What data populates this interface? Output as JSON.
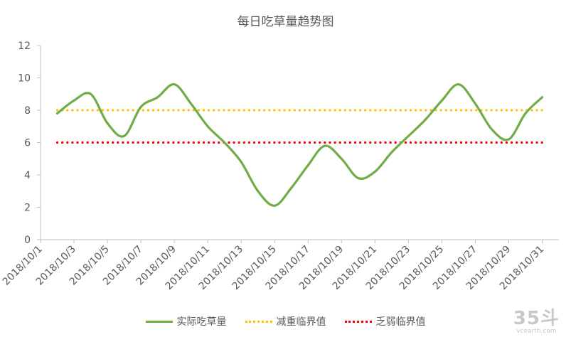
{
  "chart_data": {
    "type": "line",
    "title": "每日吃草量趋势图",
    "xlabel": "",
    "ylabel": "",
    "ylim": [
      0,
      12
    ],
    "yticks": [
      0,
      2,
      4,
      6,
      8,
      10,
      12
    ],
    "x_tick_labels": [
      "2018/10/1",
      "2018/10/3",
      "2018/10/5",
      "2018/10/7",
      "2018/10/9",
      "2018/10/11",
      "2018/10/13",
      "2018/10/15",
      "2018/10/17",
      "2018/10/19",
      "2018/10/21",
      "2018/10/23",
      "2018/10/25",
      "2018/10/27",
      "2018/10/29",
      "2018/10/31"
    ],
    "grid": false,
    "legend_position": "bottom",
    "series": [
      {
        "name": "实际吃草量",
        "style": "smooth-line",
        "color": "#70AD47",
        "x": [
          "2018/10/2",
          "2018/10/3",
          "2018/10/4",
          "2018/10/5",
          "2018/10/6",
          "2018/10/7",
          "2018/10/8",
          "2018/10/9",
          "2018/10/10",
          "2018/10/11",
          "2018/10/12",
          "2018/10/13",
          "2018/10/14",
          "2018/10/15",
          "2018/10/16",
          "2018/10/17",
          "2018/10/18",
          "2018/10/19",
          "2018/10/20",
          "2018/10/21",
          "2018/10/22",
          "2018/10/23",
          "2018/10/24",
          "2018/10/25",
          "2018/10/26",
          "2018/10/27",
          "2018/10/28",
          "2018/10/29",
          "2018/10/30",
          "2018/10/31"
        ],
        "values": [
          7.8,
          8.6,
          9.0,
          7.2,
          6.4,
          8.2,
          8.8,
          9.6,
          8.4,
          7.0,
          6.0,
          4.8,
          3.0,
          2.1,
          3.2,
          4.6,
          5.8,
          5.0,
          3.8,
          4.2,
          5.4,
          6.4,
          7.4,
          8.6,
          9.6,
          8.4,
          6.8,
          6.2,
          7.8,
          8.8
        ]
      },
      {
        "name": "减重临界值",
        "style": "dotted",
        "color": "#FFC000",
        "value": 8
      },
      {
        "name": "乏弱临界值",
        "style": "dotted",
        "color": "#FF0000",
        "value": 6
      }
    ]
  },
  "watermark": {
    "big": "35斗",
    "small": "vcearth.com"
  }
}
